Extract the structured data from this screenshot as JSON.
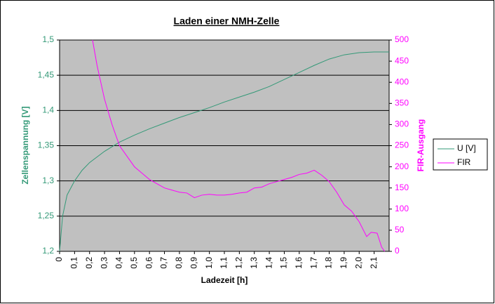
{
  "chart_data": {
    "type": "line",
    "title": "Laden einer NMH-Zelle",
    "x_label": "Ladezeit [h]",
    "y_label": "Zellenspannung [V]",
    "y2_label": "FIR-Ausgang",
    "xlim": [
      0,
      2.2
    ],
    "xticks": [
      0,
      {
        "value": 0.1,
        "label": "0,1"
      },
      {
        "value": 0.2,
        "label": "0,2"
      },
      {
        "value": 0.3,
        "label": "0,3"
      },
      {
        "value": 0.4,
        "label": "0,4"
      },
      {
        "value": 0.5,
        "label": "0,5"
      },
      {
        "value": 0.6,
        "label": "0,6"
      },
      {
        "value": 0.7,
        "label": "0,7"
      },
      {
        "value": 0.8,
        "label": "0,8"
      },
      {
        "value": 0.9,
        "label": "0,9"
      },
      {
        "value": 1.0,
        "label": "1,0"
      },
      {
        "value": 1.1,
        "label": "1,1"
      },
      {
        "value": 1.2,
        "label": "1,2"
      },
      {
        "value": 1.3,
        "label": "1,3"
      },
      {
        "value": 1.4,
        "label": "1,4"
      },
      {
        "value": 1.5,
        "label": "1,5"
      },
      {
        "value": 1.6,
        "label": "1,6"
      },
      {
        "value": 1.7,
        "label": "1,7"
      },
      {
        "value": 1.8,
        "label": "1,8"
      },
      {
        "value": 1.9,
        "label": "1,9"
      },
      {
        "value": 2.0,
        "label": "2,0"
      },
      {
        "value": 2.1,
        "label": "2,1"
      }
    ],
    "ylim": [
      1.2,
      1.5
    ],
    "yticks": [
      {
        "value": 1.2,
        "label": "1,2"
      },
      {
        "value": 1.25,
        "label": "1,25"
      },
      {
        "value": 1.3,
        "label": "1,3"
      },
      {
        "value": 1.35,
        "label": "1,35"
      },
      {
        "value": 1.4,
        "label": "1,4"
      },
      {
        "value": 1.45,
        "label": "1,45"
      },
      {
        "value": 1.5,
        "label": "1,5"
      }
    ],
    "y2lim": [
      0,
      500
    ],
    "y2ticks": [
      0,
      50,
      100,
      150,
      200,
      250,
      300,
      350,
      400,
      450,
      500
    ],
    "grid": true,
    "legend": "right",
    "series": [
      {
        "name": "U [V]",
        "color": "#339977",
        "x": [
          0,
          0.02,
          0.05,
          0.1,
          0.15,
          0.2,
          0.3,
          0.4,
          0.5,
          0.6,
          0.7,
          0.8,
          0.9,
          1.0,
          1.1,
          1.2,
          1.3,
          1.4,
          1.5,
          1.6,
          1.7,
          1.8,
          1.9,
          2.0,
          2.1,
          2.2
        ],
        "values": [
          1.2,
          1.25,
          1.28,
          1.3,
          1.315,
          1.326,
          1.342,
          1.355,
          1.365,
          1.374,
          1.382,
          1.39,
          1.397,
          1.404,
          1.412,
          1.419,
          1.426,
          1.434,
          1.444,
          1.454,
          1.464,
          1.473,
          1.479,
          1.482,
          1.483,
          1.483
        ]
      },
      {
        "name": "FIR",
        "color": "#ff00ff",
        "axis": "y2",
        "x": [
          0.22,
          0.25,
          0.3,
          0.35,
          0.4,
          0.45,
          0.5,
          0.55,
          0.6,
          0.65,
          0.7,
          0.75,
          0.8,
          0.85,
          0.9,
          0.95,
          1.0,
          1.05,
          1.1,
          1.15,
          1.2,
          1.25,
          1.3,
          1.35,
          1.4,
          1.45,
          1.5,
          1.55,
          1.6,
          1.65,
          1.7,
          1.75,
          1.8,
          1.85,
          1.9,
          1.95,
          2.0,
          2.05,
          2.08,
          2.12,
          2.15,
          2.17
        ],
        "values": [
          500,
          440,
          360,
          300,
          250,
          225,
          200,
          185,
          170,
          160,
          150,
          145,
          140,
          138,
          127,
          133,
          135,
          133,
          133,
          135,
          138,
          140,
          150,
          152,
          160,
          165,
          170,
          175,
          182,
          185,
          192,
          180,
          165,
          140,
          110,
          95,
          70,
          35,
          45,
          43,
          10,
          0
        ]
      }
    ]
  }
}
